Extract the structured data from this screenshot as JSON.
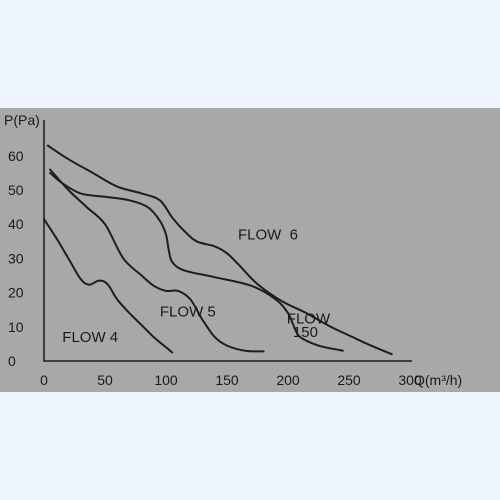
{
  "chart_data": {
    "type": "line",
    "xlabel": "Q(m³/h)",
    "ylabel": "P(Pa)",
    "xlim": [
      0,
      320
    ],
    "ylim": [
      0,
      70
    ],
    "x_ticks": [
      "0",
      "50",
      "100",
      "150",
      "200",
      "250",
      "300"
    ],
    "y_ticks": [
      "0",
      "10",
      "20",
      "30",
      "40",
      "50",
      "60"
    ],
    "grid": false,
    "legend": "none",
    "colors": {
      "background": "#a8a8a8",
      "line": "#1e1e1e",
      "page": "#edf4fc"
    },
    "series": [
      {
        "name": "FLOW 4",
        "points": [
          [
            0,
            41.5
          ],
          [
            10,
            36
          ],
          [
            20,
            30
          ],
          [
            30,
            24
          ],
          [
            37,
            22.3
          ],
          [
            45,
            23.5
          ],
          [
            52,
            22.5
          ],
          [
            60,
            18
          ],
          [
            70,
            14
          ],
          [
            80,
            10.5
          ],
          [
            90,
            7
          ],
          [
            100,
            4
          ],
          [
            105,
            2.5
          ]
        ]
      },
      {
        "name": "FLOW 5",
        "points": [
          [
            5,
            56
          ],
          [
            20,
            50
          ],
          [
            35,
            45
          ],
          [
            50,
            40
          ],
          [
            65,
            30
          ],
          [
            80,
            25
          ],
          [
            90,
            22
          ],
          [
            100,
            20.5
          ],
          [
            110,
            20.5
          ],
          [
            120,
            18
          ],
          [
            130,
            12
          ],
          [
            140,
            7
          ],
          [
            150,
            4.5
          ],
          [
            165,
            3
          ],
          [
            180,
            2.8
          ]
        ]
      },
      {
        "name": "FLOW 150",
        "points": [
          [
            5,
            55
          ],
          [
            15,
            52
          ],
          [
            30,
            49
          ],
          [
            50,
            48
          ],
          [
            70,
            47
          ],
          [
            85,
            45
          ],
          [
            95,
            41
          ],
          [
            100,
            37
          ],
          [
            102,
            33
          ],
          [
            105,
            29
          ],
          [
            115,
            26.5
          ],
          [
            140,
            24.5
          ],
          [
            170,
            22
          ],
          [
            190,
            18
          ],
          [
            200,
            14
          ],
          [
            205,
            10
          ],
          [
            210,
            7
          ],
          [
            225,
            4.5
          ],
          [
            245,
            3
          ]
        ]
      },
      {
        "name": "FLOW 6",
        "points": [
          [
            3,
            63
          ],
          [
            20,
            59
          ],
          [
            40,
            55
          ],
          [
            60,
            51
          ],
          [
            80,
            49
          ],
          [
            95,
            47
          ],
          [
            105,
            42
          ],
          [
            115,
            38
          ],
          [
            125,
            35
          ],
          [
            140,
            33.5
          ],
          [
            150,
            31.5
          ],
          [
            160,
            28
          ],
          [
            175,
            22.5
          ],
          [
            195,
            17.5
          ],
          [
            215,
            14
          ],
          [
            235,
            10
          ],
          [
            250,
            7.5
          ],
          [
            265,
            5
          ],
          [
            285,
            2
          ]
        ]
      }
    ],
    "annotations": [
      {
        "text": "FLOW 4",
        "x": 15,
        "y": 5.5
      },
      {
        "text": "FLOW 5",
        "x": 95,
        "y": 13
      },
      {
        "text": "FLOW",
        "x": 199,
        "y": 11
      },
      {
        "text": "150",
        "x": 204,
        "y": 7
      },
      {
        "text": "FLOW  6",
        "x": 159,
        "y": 35.5
      }
    ]
  }
}
